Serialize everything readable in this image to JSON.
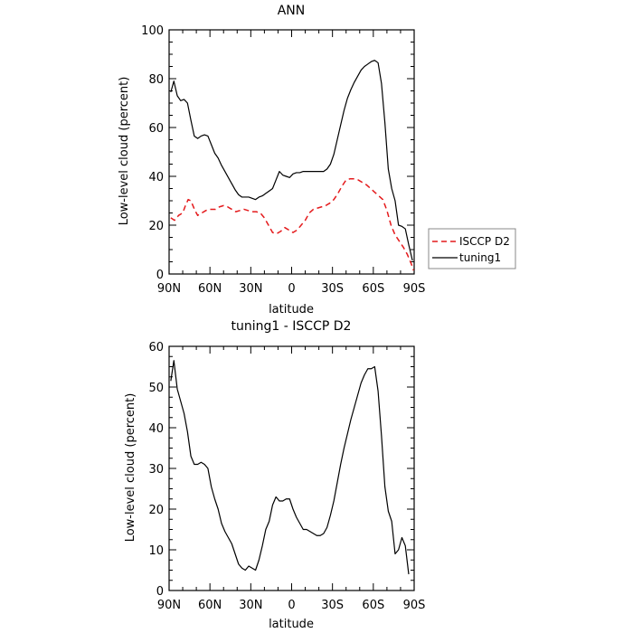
{
  "chart_data": [
    {
      "type": "line",
      "title": "ANN",
      "xlabel": "latitude",
      "ylabel": "Low-level cloud (percent)",
      "xlim": [
        90,
        -90
      ],
      "ylim": [
        0,
        100
      ],
      "xticks": [
        90,
        60,
        30,
        0,
        -30,
        -60,
        -90
      ],
      "xtick_labels": [
        "90N",
        "60N",
        "30N",
        "0",
        "30S",
        "60S",
        "90S"
      ],
      "yticks": [
        0,
        20,
        40,
        60,
        80,
        100
      ],
      "ytick_labels": [
        "0",
        "20",
        "40",
        "60",
        "80",
        "100"
      ],
      "legend_position": "right",
      "series": [
        {
          "name": "ISCCP D2",
          "color": "#e41a1c",
          "style": "dashed",
          "points": [
            [
              88.75,
              23
            ],
            [
              86,
              22
            ],
            [
              83,
              24
            ],
            [
              80,
              25
            ],
            [
              78,
              28
            ],
            [
              76,
              30.5
            ],
            [
              74,
              30
            ],
            [
              71,
              26
            ],
            [
              69,
              24
            ],
            [
              66,
              25
            ],
            [
              63,
              26
            ],
            [
              60,
              26.5
            ],
            [
              56,
              26.5
            ],
            [
              53,
              27.5
            ],
            [
              50,
              28
            ],
            [
              47,
              27.5
            ],
            [
              44,
              26.5
            ],
            [
              41,
              25.5
            ],
            [
              38,
              26
            ],
            [
              35,
              26.5
            ],
            [
              32,
              26
            ],
            [
              29,
              25.5
            ],
            [
              26,
              25.5
            ],
            [
              23,
              25
            ],
            [
              20,
              23
            ],
            [
              17,
              20
            ],
            [
              14,
              17
            ],
            [
              11,
              16.5
            ],
            [
              8,
              17.5
            ],
            [
              5,
              19
            ],
            [
              2,
              18
            ],
            [
              -1,
              17
            ],
            [
              -4,
              18
            ],
            [
              -7,
              20
            ],
            [
              -10,
              22
            ],
            [
              -13,
              25
            ],
            [
              -16,
              26.5
            ],
            [
              -19,
              27
            ],
            [
              -22,
              27.5
            ],
            [
              -25,
              28
            ],
            [
              -28,
              29
            ],
            [
              -31,
              30.5
            ],
            [
              -34,
              33
            ],
            [
              -37,
              36
            ],
            [
              -40,
              38.5
            ],
            [
              -43,
              39
            ],
            [
              -46,
              39
            ],
            [
              -49,
              38.5
            ],
            [
              -52,
              37.5
            ],
            [
              -55,
              36.5
            ],
            [
              -58,
              35
            ],
            [
              -61,
              33.5
            ],
            [
              -64,
              32
            ],
            [
              -67,
              30.5
            ],
            [
              -70,
              26
            ],
            [
              -73,
              20
            ],
            [
              -76,
              16
            ],
            [
              -79,
              13.5
            ],
            [
              -82,
              11
            ],
            [
              -85,
              8
            ],
            [
              -88,
              4
            ],
            [
              -89.5,
              1.5
            ]
          ]
        },
        {
          "name": "tuning1",
          "color": "#000000",
          "style": "solid",
          "points": [
            [
              88.75,
              74.5
            ],
            [
              86.5,
              79
            ],
            [
              84,
              73
            ],
            [
              81.5,
              71
            ],
            [
              79,
              71.5
            ],
            [
              76.5,
              70
            ],
            [
              74,
              63
            ],
            [
              71.5,
              56.5
            ],
            [
              69,
              55.5
            ],
            [
              66.5,
              56.5
            ],
            [
              64,
              57
            ],
            [
              61.5,
              56.5
            ],
            [
              59,
              53
            ],
            [
              56.5,
              49.5
            ],
            [
              54,
              47.5
            ],
            [
              51.5,
              44.5
            ],
            [
              49,
              42
            ],
            [
              46.5,
              39.5
            ],
            [
              44,
              37
            ],
            [
              41.5,
              34.5
            ],
            [
              39,
              32.5
            ],
            [
              36.5,
              31.5
            ],
            [
              34,
              31.5
            ],
            [
              31.5,
              31.5
            ],
            [
              29,
              31
            ],
            [
              26.5,
              30.5
            ],
            [
              24,
              31.5
            ],
            [
              21.5,
              32
            ],
            [
              19,
              33
            ],
            [
              16.5,
              34
            ],
            [
              14,
              35
            ],
            [
              11.5,
              38.5
            ],
            [
              9,
              42
            ],
            [
              6.5,
              40.5
            ],
            [
              4,
              40
            ],
            [
              1.5,
              39.5
            ],
            [
              -1,
              41
            ],
            [
              -3.5,
              41.5
            ],
            [
              -6,
              41.5
            ],
            [
              -8.5,
              42
            ],
            [
              -11,
              42
            ],
            [
              -13.5,
              42
            ],
            [
              -16,
              42
            ],
            [
              -18.5,
              42
            ],
            [
              -21,
              42
            ],
            [
              -23.5,
              42
            ],
            [
              -26,
              43
            ],
            [
              -28.5,
              45
            ],
            [
              -31,
              49
            ],
            [
              -33.5,
              55
            ],
            [
              -36,
              61
            ],
            [
              -38.5,
              67
            ],
            [
              -41,
              72
            ],
            [
              -43.5,
              75.5
            ],
            [
              -46,
              78.5
            ],
            [
              -48.5,
              81
            ],
            [
              -51,
              83.5
            ],
            [
              -53.5,
              85
            ],
            [
              -56,
              86
            ],
            [
              -58.5,
              87
            ],
            [
              -61,
              87.5
            ],
            [
              -63.5,
              86.5
            ],
            [
              -66,
              78
            ],
            [
              -68.5,
              62
            ],
            [
              -71,
              43
            ],
            [
              -73.5,
              35
            ],
            [
              -76,
              30
            ],
            [
              -78.5,
              20
            ],
            [
              -81,
              19.5
            ],
            [
              -83.5,
              18.5
            ],
            [
              -86,
              12
            ],
            [
              -88.75,
              5.5
            ]
          ]
        }
      ]
    },
    {
      "type": "line",
      "title": "tuning1 - ISCCP D2",
      "xlabel": "latitude",
      "ylabel": "Low-level cloud (percent)",
      "xlim": [
        90,
        -90
      ],
      "ylim": [
        0,
        60
      ],
      "xticks": [
        90,
        60,
        30,
        0,
        -30,
        -60,
        -90
      ],
      "xtick_labels": [
        "90N",
        "60N",
        "30N",
        "0",
        "30S",
        "60S",
        "90S"
      ],
      "yticks": [
        0,
        10,
        20,
        30,
        40,
        50,
        60
      ],
      "ytick_labels": [
        "0",
        "10",
        "20",
        "30",
        "40",
        "50",
        "60"
      ],
      "series": [
        {
          "color": "#000000",
          "style": "solid",
          "points": [
            [
              88.75,
              51.5
            ],
            [
              86.5,
              56.5
            ],
            [
              84,
              49.5
            ],
            [
              81.5,
              46.5
            ],
            [
              79,
              43.5
            ],
            [
              76.5,
              39
            ],
            [
              74,
              33
            ],
            [
              71.5,
              31
            ],
            [
              69,
              31
            ],
            [
              66.5,
              31.5
            ],
            [
              64,
              31
            ],
            [
              61.5,
              30
            ],
            [
              59,
              25.5
            ],
            [
              56.5,
              22.5
            ],
            [
              54,
              20
            ],
            [
              51.5,
              16.5
            ],
            [
              49,
              14.5
            ],
            [
              46.5,
              13
            ],
            [
              44,
              11.5
            ],
            [
              41.5,
              9
            ],
            [
              39,
              6.5
            ],
            [
              36.5,
              5.5
            ],
            [
              34,
              5
            ],
            [
              31.5,
              6
            ],
            [
              29,
              5.5
            ],
            [
              26.5,
              5
            ],
            [
              24,
              7.5
            ],
            [
              21.5,
              11
            ],
            [
              19,
              15
            ],
            [
              16.5,
              17
            ],
            [
              14,
              21
            ],
            [
              11.5,
              23
            ],
            [
              9,
              22
            ],
            [
              6.5,
              22
            ],
            [
              4,
              22.5
            ],
            [
              1.5,
              22.5
            ],
            [
              -1,
              20
            ],
            [
              -3.5,
              18
            ],
            [
              -6,
              16.5
            ],
            [
              -8.5,
              15
            ],
            [
              -11,
              15
            ],
            [
              -13.5,
              14.5
            ],
            [
              -16,
              14
            ],
            [
              -18.5,
              13.5
            ],
            [
              -21,
              13.5
            ],
            [
              -23.5,
              14
            ],
            [
              -26,
              15.5
            ],
            [
              -28.5,
              18.5
            ],
            [
              -31,
              22
            ],
            [
              -33.5,
              26.5
            ],
            [
              -36,
              31
            ],
            [
              -38.5,
              35
            ],
            [
              -41,
              38.5
            ],
            [
              -43.5,
              42
            ],
            [
              -46,
              45
            ],
            [
              -48.5,
              48
            ],
            [
              -51,
              51
            ],
            [
              -53.5,
              53
            ],
            [
              -56,
              54.5
            ],
            [
              -58.5,
              54.5
            ],
            [
              -61,
              55
            ],
            [
              -63.5,
              49
            ],
            [
              -66,
              38
            ],
            [
              -68.5,
              25.5
            ],
            [
              -71,
              19.5
            ],
            [
              -73.5,
              17
            ],
            [
              -76,
              9
            ],
            [
              -78.5,
              10
            ],
            [
              -81,
              13
            ],
            [
              -83.5,
              11
            ],
            [
              -86,
              4
            ]
          ]
        }
      ]
    }
  ]
}
